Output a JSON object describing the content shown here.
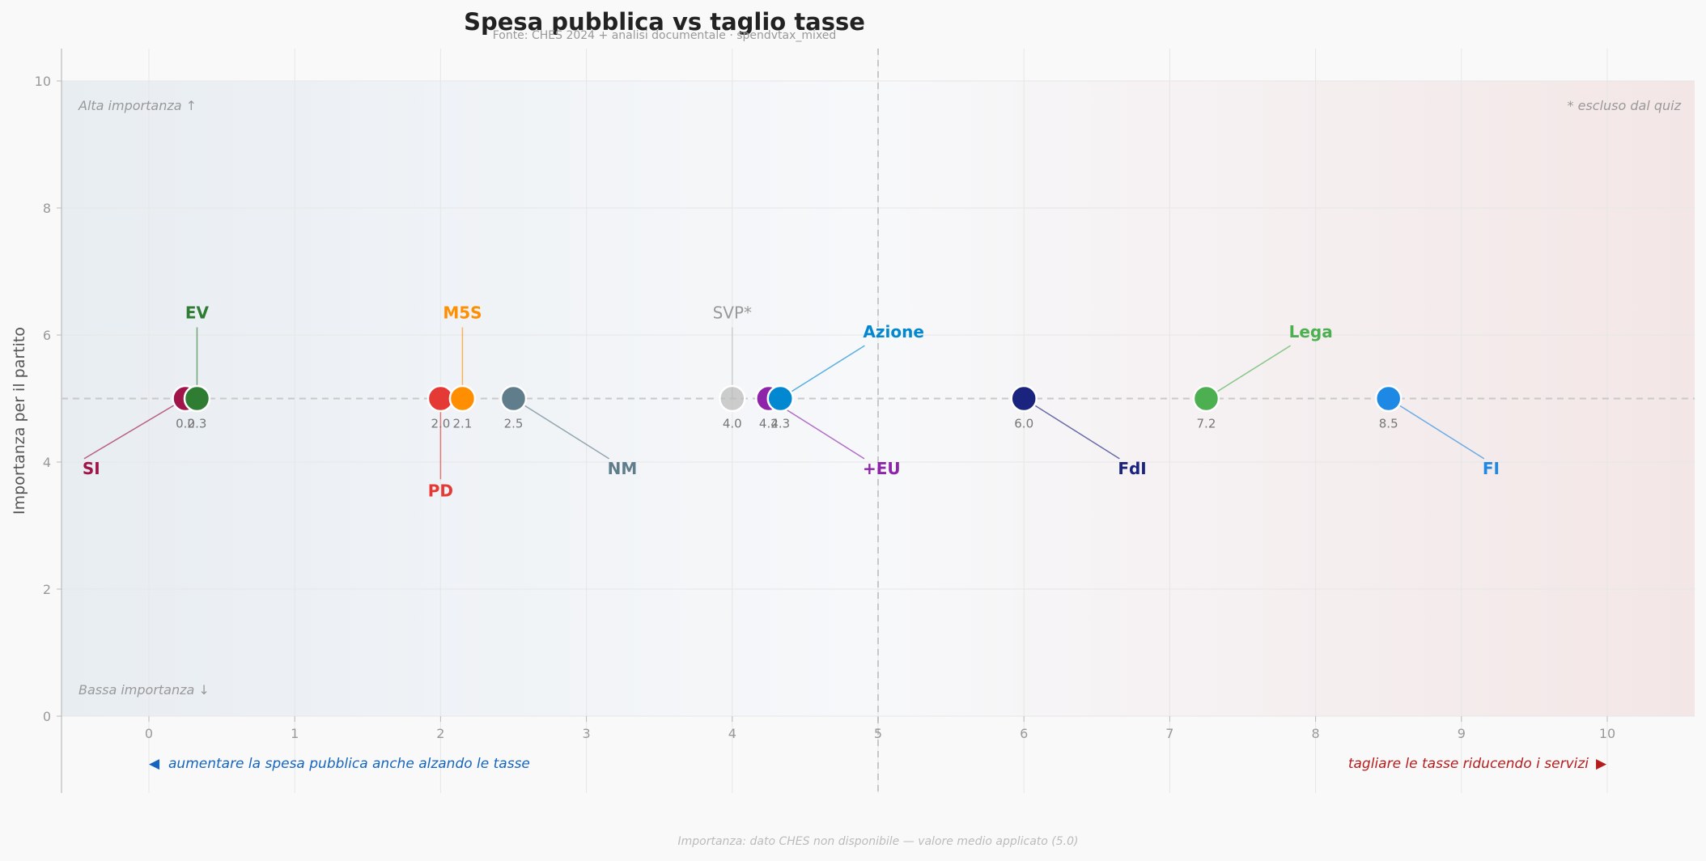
{
  "chart_data": {
    "type": "scatter",
    "title": "Spesa pubblica vs taglio tasse",
    "subtitle": "Fonte: CHES 2024 + analisi documentale · spendvtax_mixed",
    "ylabel": "Importanza per il partito",
    "xlim": [
      -0.6,
      10.6
    ],
    "ylim": [
      0,
      10
    ],
    "x_ticks": [
      "0",
      "1",
      "2",
      "3",
      "4",
      "5",
      "6",
      "7",
      "8",
      "9",
      "10"
    ],
    "y_ticks": [
      "0",
      "2",
      "4",
      "6",
      "8",
      "10"
    ],
    "grid": true,
    "midline_x": 5,
    "midline_y": 5,
    "corner_top_left": "Alta importanza ↑",
    "corner_bottom_left": "Bassa importanza ↓",
    "corner_top_right": "* escluso dal quiz",
    "left_note": "aumentare la spesa pubblica anche alzando le tasse",
    "right_note": "tagliare le tasse riducendo i servizi",
    "left_note_color": "#1565c0",
    "right_note_color": "#b71c1c",
    "footnote": "Importanza: dato CHES non disponibile — valore medio applicato (5.0)",
    "points": [
      {
        "name": "SI",
        "x": 0.25,
        "y": 5,
        "value_label": "0.2",
        "color": "#a0144a",
        "label_x": -0.4,
        "label_y": 3.9
      },
      {
        "name": "EV",
        "x": 0.33,
        "y": 5,
        "value_label": "0.3",
        "color": "#2e7d32",
        "label_x": 0.33,
        "label_y": 6.35
      },
      {
        "name": "PD",
        "x": 2.0,
        "y": 5,
        "value_label": "2.0",
        "color": "#e53935",
        "label_x": 2.0,
        "label_y": 3.55
      },
      {
        "name": "M5S",
        "x": 2.15,
        "y": 5,
        "value_label": "2.1",
        "color": "#ff8f00",
        "label_x": 2.15,
        "label_y": 6.35
      },
      {
        "name": "NM",
        "x": 2.5,
        "y": 5,
        "value_label": "2.5",
        "color": "#607d8b",
        "label_x": 3.2,
        "label_y": 3.9
      },
      {
        "name": "SVP*",
        "x": 4.0,
        "y": 5,
        "value_label": "4.0",
        "color": "#bdbdbd",
        "excluded": true,
        "label_x": 4.0,
        "label_y": 6.35
      },
      {
        "name": "+EU",
        "x": 4.25,
        "y": 5,
        "value_label": "4.2",
        "color": "#8e24aa",
        "label_x": 4.95,
        "label_y": 3.9
      },
      {
        "name": "Azione",
        "x": 4.33,
        "y": 5,
        "value_label": "4.3",
        "color": "#0288d1",
        "label_x": 5.03,
        "label_y": 6.05
      },
      {
        "name": "FdI",
        "x": 6.0,
        "y": 5,
        "value_label": "6.0",
        "color": "#1a237e",
        "label_x": 6.7,
        "label_y": 3.9
      },
      {
        "name": "Lega",
        "x": 7.25,
        "y": 5,
        "value_label": "7.2",
        "color": "#4caf50",
        "label_x": 7.95,
        "label_y": 6.05
      },
      {
        "name": "FI",
        "x": 8.5,
        "y": 5,
        "value_label": "8.5",
        "color": "#1e88e5",
        "label_x": 9.2,
        "label_y": 3.9
      }
    ]
  }
}
